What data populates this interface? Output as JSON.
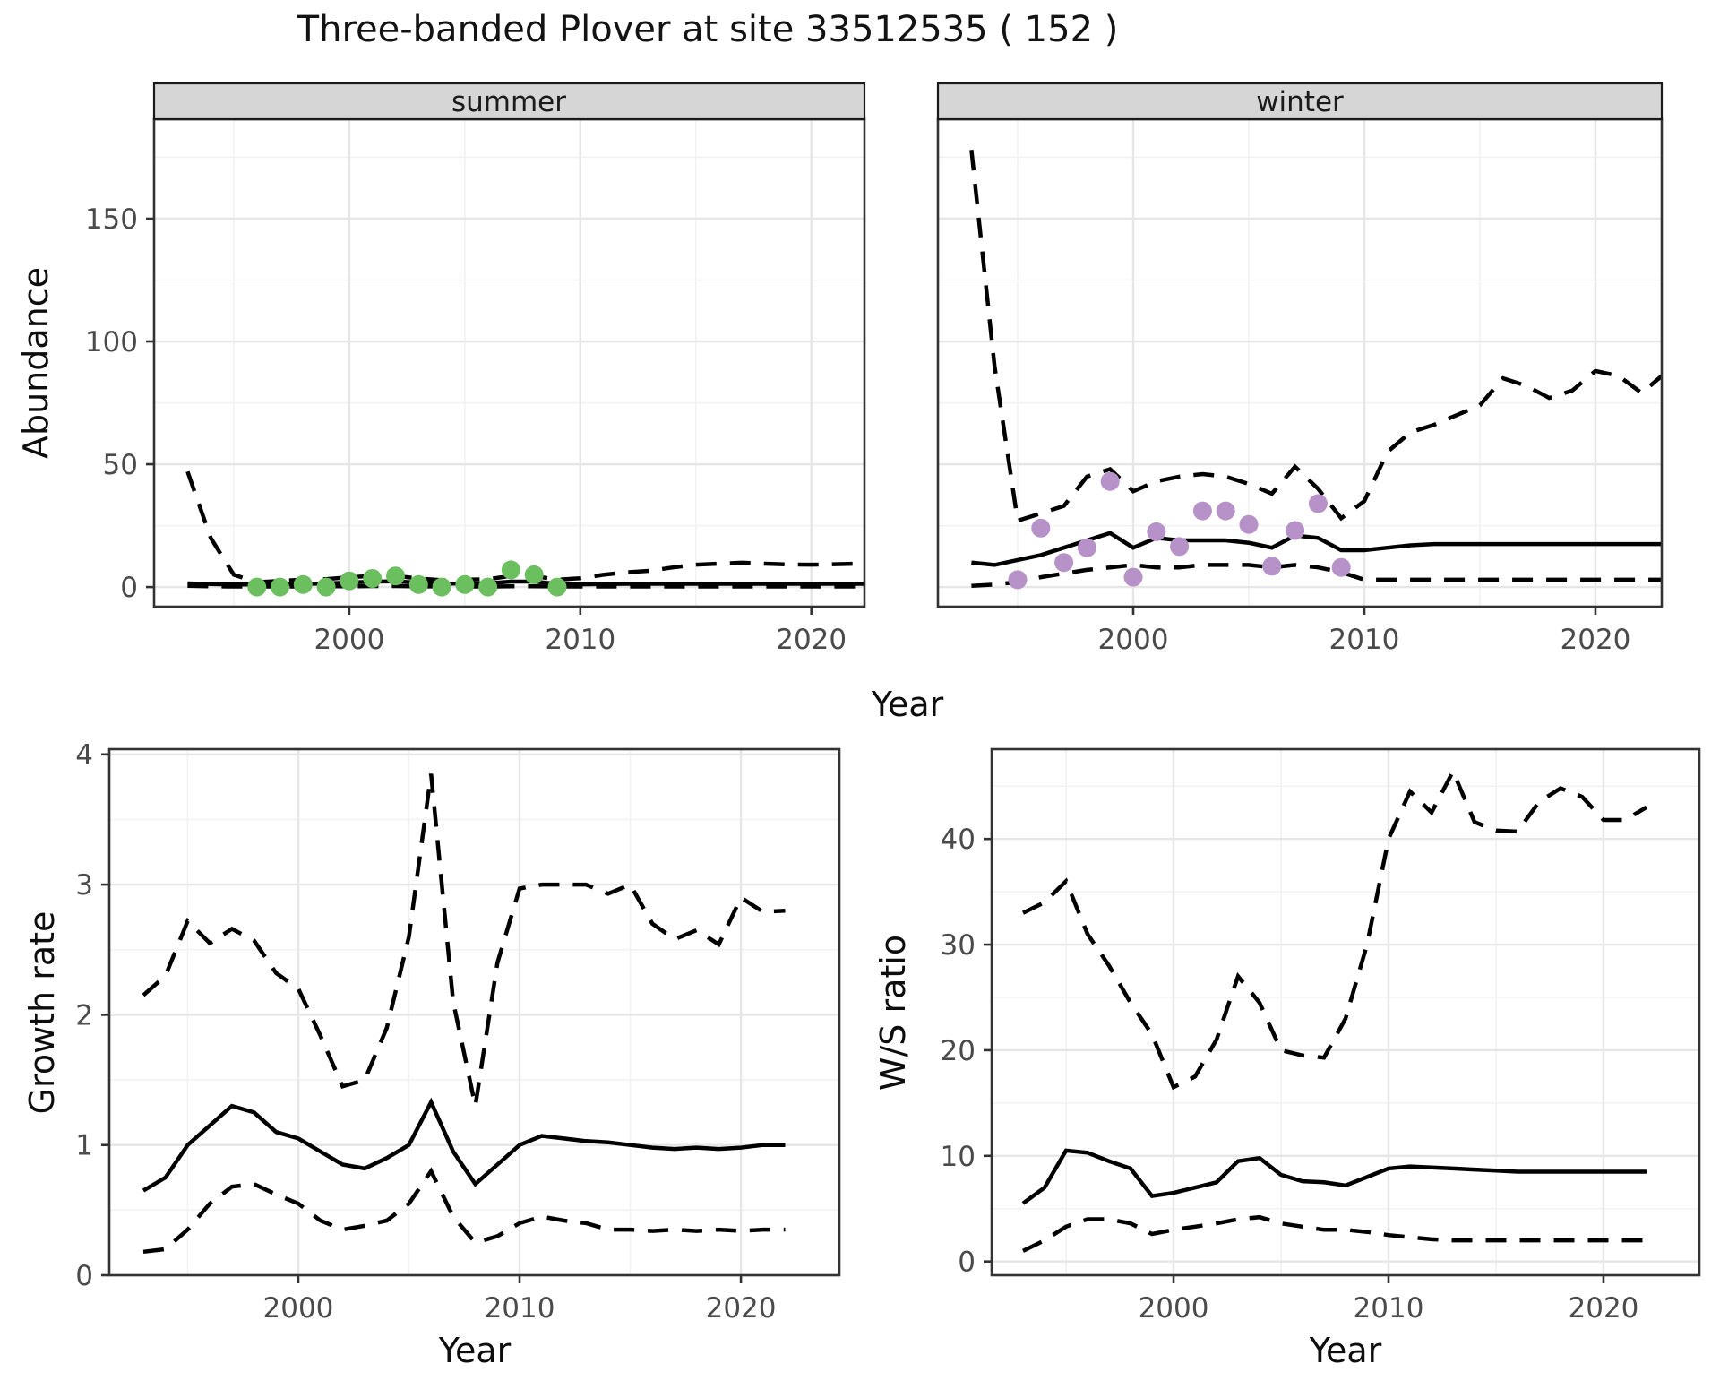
{
  "title": "Three-banded Plover at site 33512535 ( 152 )",
  "colors": {
    "summer_points": "#6cbf5f",
    "winter_points": "#b792c8",
    "line": "#000000",
    "grid_major": "#e6e6e6",
    "grid_minor": "#f2f2f2",
    "panel_border": "#333333",
    "panel_fill": "#ffffff",
    "strip_fill": "#d6d6d6",
    "strip_border": "#1a1a1a",
    "tick_color": "#333333",
    "tick_label": "#4a4a4a"
  },
  "facets": {
    "summer": "summer",
    "winter": "winter"
  },
  "axis_labels": {
    "x_top": "Year",
    "x_growth": "Year",
    "x_ws": "Year",
    "y_top": "Abundance",
    "y_growth": "Growth rate",
    "y_ws": "W/S ratio"
  },
  "chart_data": [
    {
      "id": "abundance-summer",
      "type": "line",
      "facet_label": "summer",
      "ylabel": "Abundance",
      "xlabel": "Year",
      "x_major_ticks": [
        2000,
        2010,
        2020
      ],
      "x_minor_ticks": [
        1995,
        2005,
        2015
      ],
      "y_major_ticks": [
        0,
        50,
        100,
        150
      ],
      "y_minor_ticks": [
        25,
        75,
        125,
        175
      ],
      "xlim": [
        1991.55,
        2022.3
      ],
      "ylim": [
        -8,
        190.5
      ],
      "years": [
        1993,
        1994,
        1995,
        1996,
        1997,
        1998,
        1999,
        2000,
        2001,
        2002,
        2003,
        2004,
        2005,
        2006,
        2007,
        2008,
        2009,
        2010,
        2011,
        2012,
        2013,
        2014,
        2015,
        2016,
        2017,
        2018,
        2019,
        2020,
        2021,
        2022,
        2023
      ],
      "series": [
        {
          "name": "upper_ci",
          "style": "dashed",
          "values": [
            47,
            20,
            5,
            2,
            2.5,
            3,
            3.2,
            4,
            4.5,
            4.5,
            3.5,
            2.8,
            3,
            3.2,
            4.5,
            4.5,
            3,
            3.6,
            5,
            6,
            6.6,
            8,
            9.1,
            9.5,
            9.9,
            9.5,
            9.2,
            9.1,
            9.3,
            9.5,
            10
          ]
        },
        {
          "name": "median",
          "style": "solid",
          "values": [
            1.5,
            1.2,
            1,
            1,
            1,
            1.2,
            1.5,
            1.8,
            2.2,
            2.3,
            1.8,
            1.4,
            1.4,
            1.5,
            2.2,
            2.2,
            1.3,
            1.1,
            1.2,
            1.3,
            1.3,
            1.3,
            1.3,
            1.3,
            1.3,
            1.3,
            1.3,
            1.3,
            1.3,
            1.3,
            1.3
          ]
        },
        {
          "name": "lower_ci",
          "style": "dashed",
          "values": [
            0.5,
            0.3,
            0.2,
            0.2,
            0.2,
            0.2,
            0.3,
            0.3,
            0.4,
            0.4,
            0.3,
            0.2,
            0.2,
            0.2,
            0.3,
            0.3,
            0.2,
            0.2,
            0.2,
            0.2,
            0.2,
            0.2,
            0.2,
            0.2,
            0.2,
            0.2,
            0.2,
            0.2,
            0.2,
            0.2,
            0.2
          ]
        }
      ],
      "points": {
        "name": "observed-counts",
        "color_key": "summer_points",
        "years": [
          1996,
          1997,
          1998,
          1999,
          2000,
          2001,
          2002,
          2003,
          2004,
          2005,
          2006,
          2007,
          2008,
          2009
        ],
        "values": [
          0,
          0,
          1,
          0,
          2.5,
          3.5,
          4.5,
          1,
          0,
          1,
          0,
          7,
          5,
          0
        ]
      }
    },
    {
      "id": "abundance-winter",
      "type": "line",
      "facet_label": "winter",
      "ylabel": "Abundance",
      "xlabel": "Year",
      "x_major_ticks": [
        2000,
        2010,
        2020
      ],
      "x_minor_ticks": [
        1995,
        2005,
        2015
      ],
      "y_major_ticks": [
        0,
        50,
        100,
        150
      ],
      "y_minor_ticks": [
        25,
        75,
        125,
        175
      ],
      "xlim": [
        1991.55,
        2022.87
      ],
      "ylim": [
        -8,
        190.5
      ],
      "years": [
        1993,
        1994,
        1995,
        1996,
        1997,
        1998,
        1999,
        2000,
        2001,
        2002,
        2003,
        2004,
        2005,
        2006,
        2007,
        2008,
        2009,
        2010,
        2011,
        2012,
        2013,
        2014,
        2015,
        2016,
        2017,
        2018,
        2019,
        2020,
        2021,
        2022,
        2023
      ],
      "series": [
        {
          "name": "upper_ci",
          "style": "dashed",
          "values": [
            178,
            90,
            27,
            30,
            33,
            45,
            48,
            39,
            43,
            45,
            46,
            45,
            42,
            38,
            49,
            40,
            28,
            35,
            55,
            63,
            66,
            70,
            74,
            85,
            82,
            77,
            80,
            88,
            86,
            79,
            87
          ]
        },
        {
          "name": "median",
          "style": "solid",
          "values": [
            10,
            9,
            11,
            13,
            16,
            19,
            22,
            16,
            20,
            19,
            19,
            19,
            18,
            16,
            21,
            20,
            15,
            15,
            16,
            17,
            17.5,
            17.5,
            17.5,
            17.5,
            17.5,
            17.5,
            17.5,
            17.5,
            17.5,
            17.5,
            17.5
          ]
        },
        {
          "name": "lower_ci",
          "style": "dashed",
          "values": [
            0.5,
            1,
            2,
            4,
            5.5,
            7,
            8,
            9,
            8,
            8,
            9,
            9,
            9,
            8,
            9,
            8,
            6,
            3,
            3,
            3,
            3,
            3,
            3,
            3,
            3,
            3,
            3,
            3,
            3,
            3,
            3
          ]
        }
      ],
      "points": {
        "name": "observed-counts",
        "color_key": "winter_points",
        "years": [
          1995,
          1996,
          1997,
          1998,
          1999,
          2000,
          2001,
          2002,
          2003,
          2004,
          2005,
          2006,
          2007,
          2008,
          2009
        ],
        "values": [
          3,
          24,
          10,
          16,
          43,
          4,
          22.5,
          16.5,
          31,
          31,
          25.5,
          8.5,
          23,
          34,
          8
        ]
      }
    },
    {
      "id": "growth-rate",
      "type": "line",
      "facet_label": "",
      "ylabel": "Growth rate",
      "xlabel": "Year",
      "x_major_ticks": [
        2000,
        2010,
        2020
      ],
      "x_minor_ticks": [
        1995,
        2005,
        2015
      ],
      "y_major_ticks": [
        0,
        1,
        2,
        3,
        4
      ],
      "y_minor_ticks": [
        0.5,
        1.5,
        2.5,
        3.5
      ],
      "xlim": [
        1991.46,
        2024.45
      ],
      "ylim": [
        0,
        4.04
      ],
      "years": [
        1993,
        1994,
        1995,
        1996,
        1997,
        1998,
        1999,
        2000,
        2001,
        2002,
        2003,
        2004,
        2005,
        2006,
        2007,
        2008,
        2009,
        2010,
        2011,
        2012,
        2013,
        2014,
        2015,
        2016,
        2017,
        2018,
        2019,
        2020,
        2021,
        2022
      ],
      "series": [
        {
          "name": "upper_ci",
          "style": "dashed",
          "values": [
            2.15,
            2.3,
            2.72,
            2.55,
            2.66,
            2.57,
            2.32,
            2.2,
            1.84,
            1.45,
            1.5,
            1.9,
            2.6,
            3.85,
            2.1,
            1.3,
            2.4,
            2.97,
            3.0,
            3.0,
            3.0,
            2.93,
            3.0,
            2.7,
            2.58,
            2.65,
            2.54,
            2.9,
            2.79,
            2.8
          ]
        },
        {
          "name": "median",
          "style": "solid",
          "values": [
            0.65,
            0.75,
            1.0,
            1.15,
            1.3,
            1.25,
            1.1,
            1.05,
            0.95,
            0.85,
            0.82,
            0.9,
            1.0,
            1.33,
            0.95,
            0.7,
            0.85,
            1.0,
            1.07,
            1.05,
            1.03,
            1.02,
            1.0,
            0.98,
            0.97,
            0.98,
            0.97,
            0.98,
            1.0,
            1.0
          ]
        },
        {
          "name": "lower_ci",
          "style": "dashed",
          "values": [
            0.18,
            0.2,
            0.35,
            0.55,
            0.68,
            0.7,
            0.62,
            0.55,
            0.42,
            0.35,
            0.38,
            0.42,
            0.55,
            0.8,
            0.45,
            0.25,
            0.3,
            0.4,
            0.45,
            0.42,
            0.4,
            0.35,
            0.35,
            0.34,
            0.35,
            0.34,
            0.35,
            0.34,
            0.35,
            0.35
          ]
        }
      ]
    },
    {
      "id": "ws-ratio",
      "type": "line",
      "facet_label": "",
      "ylabel": "W/S ratio",
      "xlabel": "Year",
      "x_major_ticks": [
        2000,
        2010,
        2020
      ],
      "x_minor_ticks": [
        1995,
        2005,
        2015
      ],
      "y_major_ticks": [
        0,
        10,
        20,
        30,
        40
      ],
      "y_minor_ticks": [
        5,
        15,
        25,
        35,
        45
      ],
      "xlim": [
        1991.54,
        2024.46
      ],
      "ylim": [
        -1.3,
        48.5
      ],
      "years": [
        1993,
        1994,
        1995,
        1996,
        1997,
        1998,
        1999,
        2000,
        2001,
        2002,
        2003,
        2004,
        2005,
        2006,
        2007,
        2008,
        2009,
        2010,
        2011,
        2012,
        2013,
        2014,
        2015,
        2016,
        2017,
        2018,
        2019,
        2020,
        2021,
        2022
      ],
      "series": [
        {
          "name": "upper_ci",
          "style": "dashed",
          "values": [
            33,
            34,
            36,
            31,
            28,
            24.5,
            21.5,
            16.5,
            17.5,
            21,
            27,
            24.5,
            20,
            19.5,
            19.3,
            23,
            30,
            40,
            44.5,
            42.5,
            46.4,
            41.6,
            40.8,
            40.7,
            43.5,
            44.8,
            44,
            41.8,
            41.8,
            43
          ]
        },
        {
          "name": "median",
          "style": "solid",
          "values": [
            5.5,
            7,
            10.5,
            10.3,
            9.5,
            8.8,
            6.2,
            6.5,
            7,
            7.5,
            9.5,
            9.8,
            8.2,
            7.6,
            7.5,
            7.2,
            8,
            8.8,
            9,
            8.9,
            8.8,
            8.7,
            8.6,
            8.5,
            8.5,
            8.5,
            8.5,
            8.5,
            8.5,
            8.5
          ]
        },
        {
          "name": "lower_ci",
          "style": "dashed",
          "values": [
            1,
            2,
            3.3,
            4,
            4,
            3.6,
            2.6,
            3,
            3.3,
            3.6,
            4,
            4.2,
            3.6,
            3.3,
            3,
            3,
            2.8,
            2.5,
            2.3,
            2.1,
            2,
            2,
            2,
            2,
            2,
            2,
            2,
            2,
            2,
            2
          ]
        }
      ]
    }
  ]
}
